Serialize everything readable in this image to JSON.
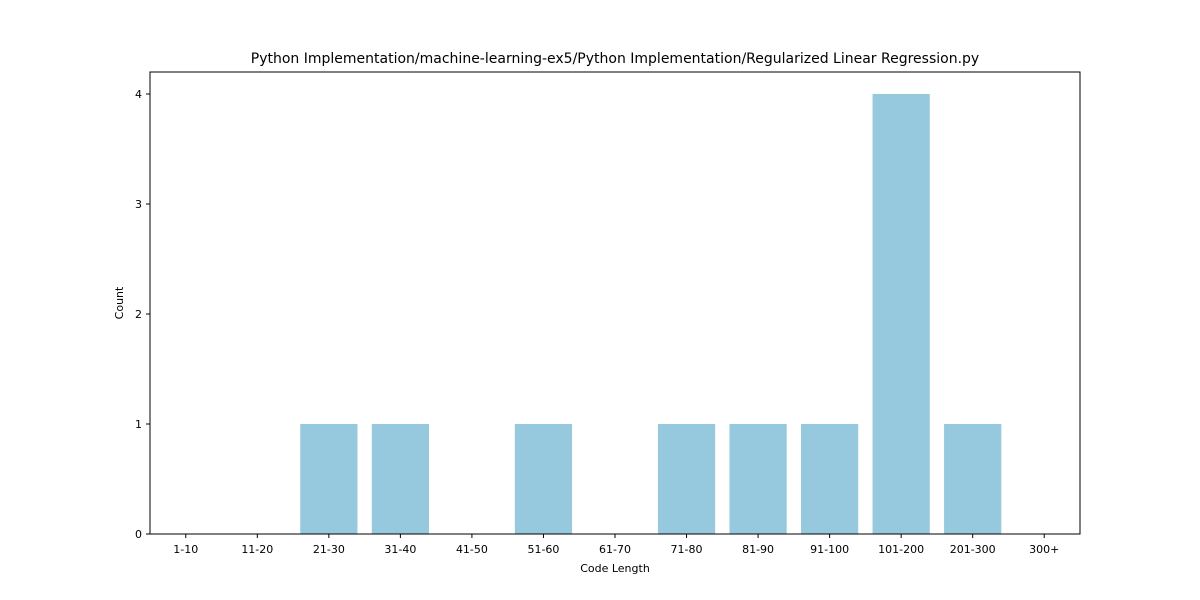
{
  "chart_data": {
    "type": "bar",
    "title": "Python Implementation/machine-learning-ex5/Python Implementation/Regularized Linear Regression.py",
    "xlabel": "Code Length",
    "ylabel": "Count",
    "categories": [
      "1-10",
      "11-20",
      "21-30",
      "31-40",
      "41-50",
      "51-60",
      "61-70",
      "71-80",
      "81-90",
      "91-100",
      "101-200",
      "201-300",
      "300+"
    ],
    "values": [
      0,
      0,
      1,
      1,
      0,
      1,
      0,
      1,
      1,
      1,
      4,
      1,
      0
    ],
    "ylim": [
      0,
      4.2
    ],
    "yticks": [
      0,
      1,
      2,
      3,
      4
    ],
    "grid": false,
    "legend": "none",
    "bar_color": "#96c9dd"
  }
}
